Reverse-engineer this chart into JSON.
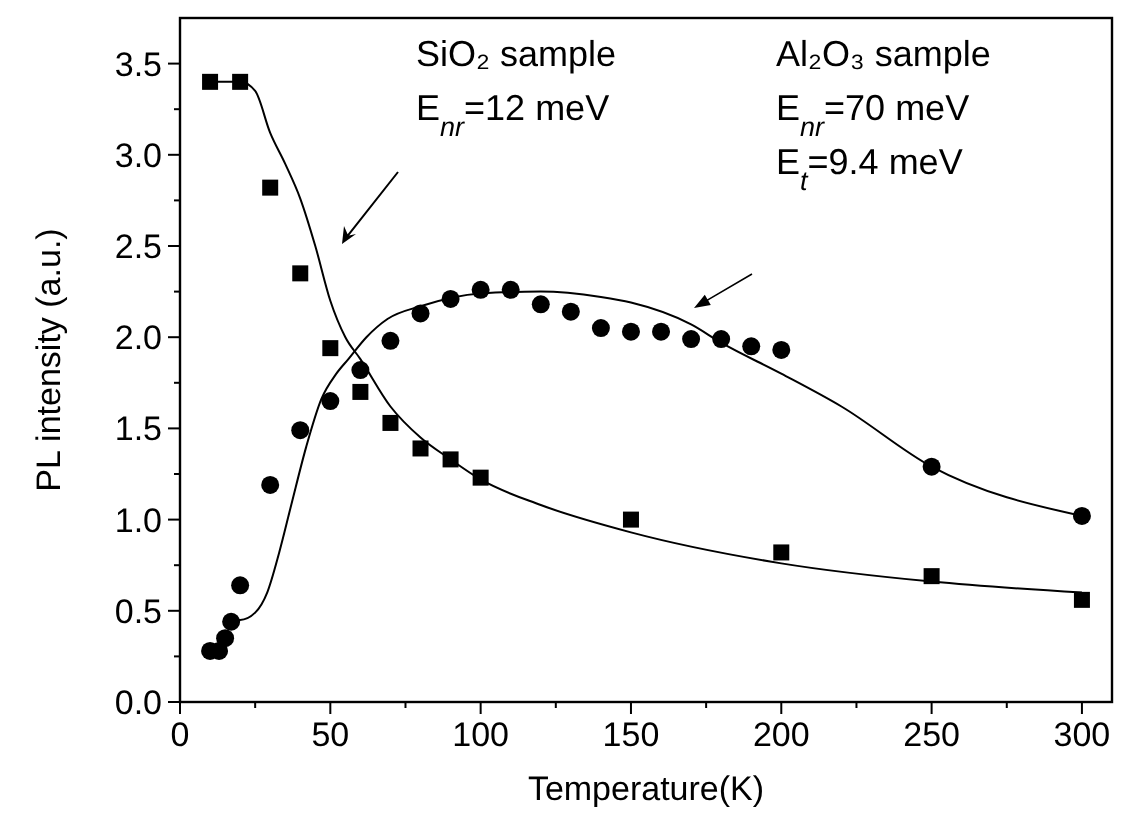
{
  "chart_data": {
    "type": "scatter",
    "xlabel": "Temperature(K)",
    "ylabel": "PL intensity (a.u.)",
    "xlim": [
      0,
      310
    ],
    "ylim": [
      0,
      3.75
    ],
    "xticks": [
      0,
      50,
      100,
      150,
      200,
      250,
      300
    ],
    "yticks": [
      {
        "value": 0,
        "label": "0.0"
      },
      0.5,
      {
        "value": 1,
        "label": "1.0"
      },
      1.5,
      {
        "value": 2,
        "label": "2.0"
      },
      2.5,
      {
        "value": 3,
        "label": "3.0"
      },
      3.5
    ],
    "grid": false,
    "annotations": [
      "SiO₂ sample",
      "E$_{nr}$=12 meV",
      "Al₂O₃ sample",
      "E$_{nr}$=70 meV",
      "E$_{t}$=9.4 meV"
    ],
    "series": [
      {
        "marker": "square",
        "color": "#000000",
        "x": [
          10,
          20,
          30,
          40,
          50,
          60,
          70,
          80,
          90,
          100,
          150,
          200,
          250,
          300
        ],
        "values": [
          3.4,
          3.4,
          2.82,
          2.35,
          1.94,
          1.7,
          1.53,
          1.39,
          1.33,
          1.23,
          1.0,
          0.82,
          0.69,
          0.56
        ]
      },
      {
        "marker": "circle",
        "color": "#000000",
        "x": [
          10,
          13,
          15,
          17,
          20,
          30,
          40,
          50,
          60,
          70,
          80,
          90,
          100,
          110,
          120,
          130,
          140,
          150,
          160,
          170,
          180,
          190,
          200,
          250,
          300
        ],
        "values": [
          0.28,
          0.28,
          0.35,
          0.44,
          0.64,
          1.19,
          1.49,
          1.65,
          1.82,
          1.98,
          2.13,
          2.21,
          2.26,
          2.26,
          2.18,
          2.14,
          2.05,
          2.03,
          2.03,
          1.99,
          1.99,
          1.95,
          1.93,
          1.29,
          1.02
        ]
      },
      {
        "type": "line",
        "color": "#000000",
        "x": [
          10,
          20,
          25,
          30,
          35,
          40,
          45,
          50,
          55,
          60,
          70,
          80,
          90,
          100,
          120,
          150,
          200,
          250,
          300
        ],
        "values": [
          3.4,
          3.4,
          3.35,
          3.12,
          2.95,
          2.76,
          2.5,
          2.2,
          2.0,
          1.88,
          1.62,
          1.45,
          1.33,
          1.22,
          1.08,
          0.93,
          0.76,
          0.66,
          0.6
        ]
      },
      {
        "type": "line",
        "color": "#000000",
        "x": [
          15,
          20,
          25,
          29,
          33,
          37,
          42,
          47,
          52,
          56,
          62,
          69,
          80,
          100,
          120,
          140,
          150,
          170,
          180,
          200,
          220,
          250,
          300
        ],
        "values": [
          0.45,
          0.45,
          0.49,
          0.6,
          0.82,
          1.08,
          1.4,
          1.66,
          1.8,
          1.88,
          2.0,
          2.1,
          2.17,
          2.24,
          2.25,
          2.22,
          2.19,
          2.07,
          1.97,
          1.8,
          1.62,
          1.29,
          1.02
        ]
      }
    ]
  }
}
